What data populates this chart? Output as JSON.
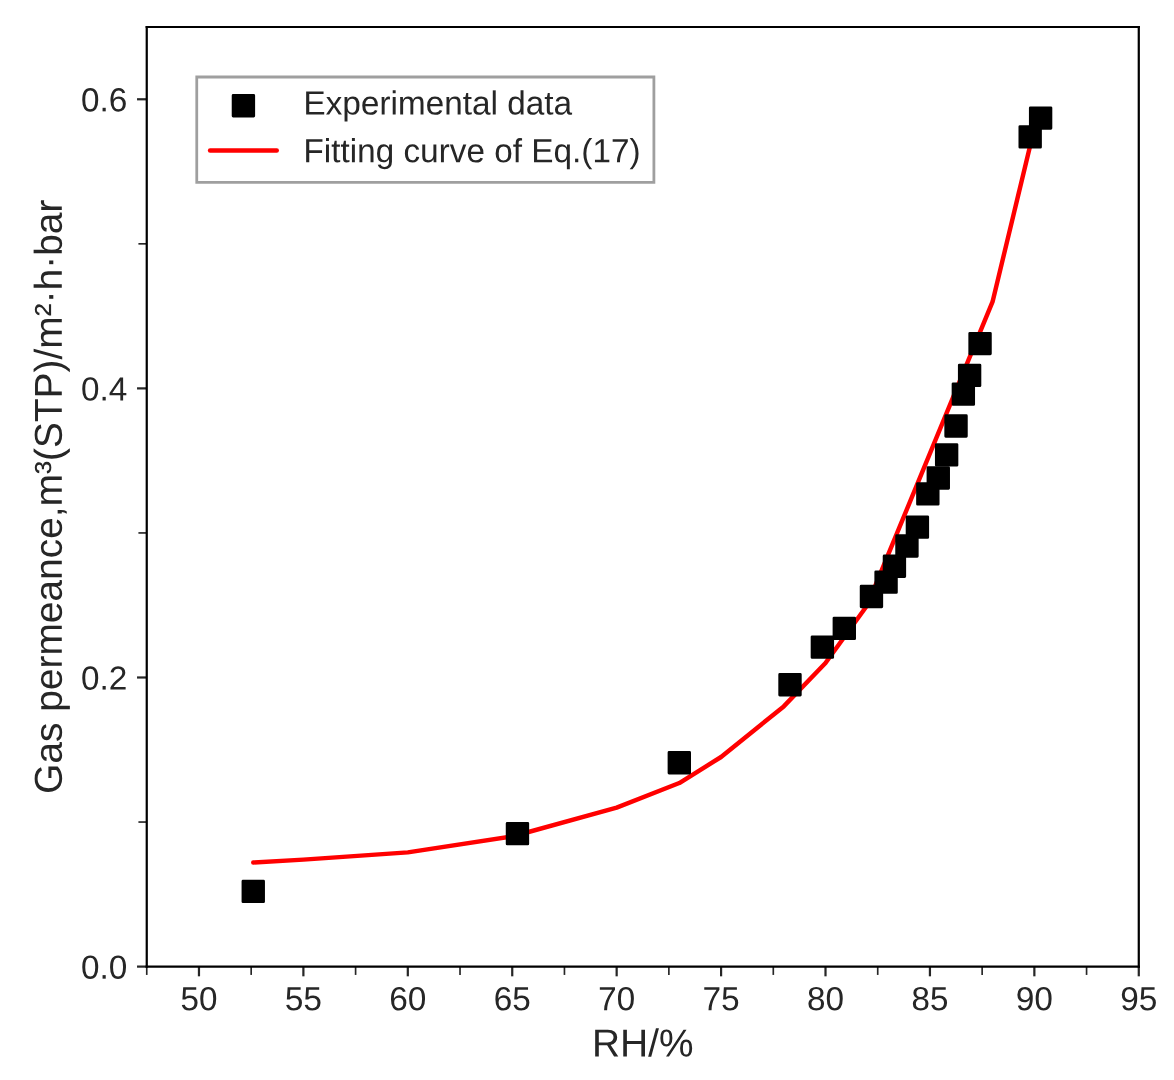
{
  "chart_data": {
    "type": "scatter",
    "xlabel": "RH/%",
    "ylabel": "Gas permeance,m³(STP)/m²·h·bar",
    "xlim": [
      47.5,
      95
    ],
    "xticks": [
      50,
      55,
      60,
      65,
      70,
      75,
      80,
      85,
      90,
      95
    ],
    "ylim": [
      0,
      0.65
    ],
    "yticks": [
      {
        "value": 0,
        "label": "0.0"
      },
      0.2,
      0.4,
      0.6
    ],
    "grid": false,
    "legend": "top left",
    "series": [
      {
        "name": "Experimental data",
        "marker": "square",
        "color": "#000000",
        "x": [
          52.6,
          65.25,
          73.0,
          78.3,
          79.85,
          80.9,
          82.2,
          82.9,
          83.3,
          83.9,
          84.4,
          84.9,
          85.4,
          85.8,
          86.25,
          86.6,
          86.9,
          87.4,
          89.8,
          90.3
        ],
        "values": [
          0.052,
          0.092,
          0.141,
          0.195,
          0.221,
          0.234,
          0.256,
          0.266,
          0.277,
          0.291,
          0.304,
          0.327,
          0.338,
          0.354,
          0.374,
          0.396,
          0.409,
          0.431,
          0.574,
          0.587
        ]
      },
      {
        "name": "Fitting curve of Eq.(17)",
        "type": "line",
        "marker": "none",
        "line_style": "solid",
        "color": "#ff0000",
        "x": [
          52.6,
          55,
          60,
          65,
          70,
          73,
          75,
          78,
          80,
          82,
          88,
          89,
          90
        ],
        "values": [
          0.072,
          0.074,
          0.079,
          0.09,
          0.11,
          0.127,
          0.145,
          0.18,
          0.21,
          0.25,
          0.46,
          0.52,
          0.58
        ]
      }
    ]
  }
}
